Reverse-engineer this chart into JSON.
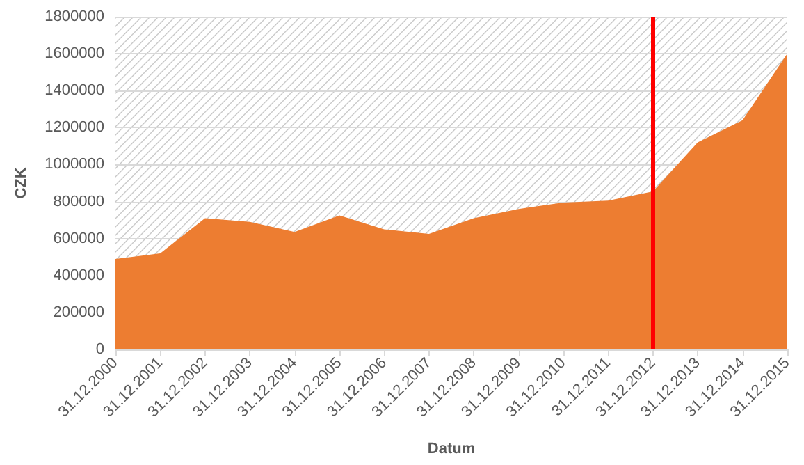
{
  "chart_data": {
    "type": "area",
    "xlabel": "Datum",
    "ylabel": "CZK",
    "categories": [
      "31.12.2000",
      "31.12.2001",
      "31.12.2002",
      "31.12.2003",
      "31.12.2004",
      "31.12.2005",
      "31.12.2006",
      "31.12.2007",
      "31.12.2008",
      "31.12.2009",
      "31.12.2010",
      "31.12.2011",
      "31.12.2012",
      "31.12.2013",
      "31.12.2014",
      "31.12.2015"
    ],
    "series": [
      {
        "color": "#ed7d31",
        "values": [
          490000,
          520000,
          710000,
          690000,
          635000,
          725000,
          650000,
          625000,
          710000,
          760000,
          795000,
          805000,
          855000,
          1120000,
          1240000,
          1600000
        ]
      }
    ],
    "ylim": [
      0,
      1800000
    ],
    "yticks": [
      0,
      200000,
      400000,
      600000,
      800000,
      1000000,
      1200000,
      1400000,
      1600000,
      1800000
    ],
    "grid": "y",
    "ref_lines": [
      {
        "axis": "x",
        "value": "31.12.2012",
        "color": "#ff0000"
      }
    ]
  }
}
